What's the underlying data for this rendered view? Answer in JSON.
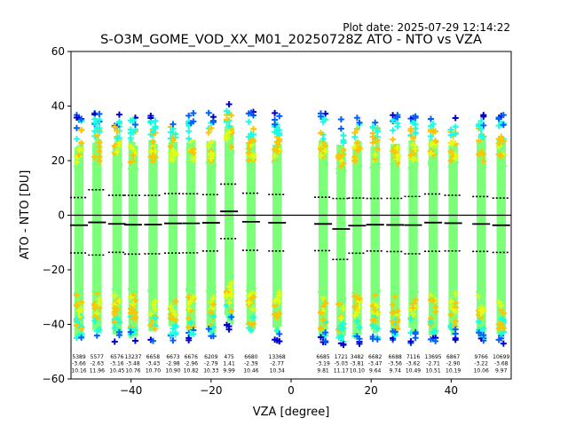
{
  "plot_date": "Plot date: 2025-07-29 12:14:22",
  "chart_data": {
    "type": "scatter",
    "title": "S-O3M_GOME_VOD_XX_M01_20250728Z ATO - NTO vs VZA",
    "xlabel": "VZA [degree]",
    "ylabel": "ATO - NTO [DU]",
    "xlim": [
      -55,
      55
    ],
    "ylim": [
      -60,
      60
    ],
    "xticks": [
      -40,
      -20,
      0,
      20,
      40
    ],
    "yticks": [
      -60,
      -40,
      -20,
      0,
      20,
      40,
      60
    ],
    "grid": false,
    "zero_line": 0,
    "colors": {
      "dense": "#7cff79",
      "mid_low": "#ffc400",
      "mid_high": "#16ffe1",
      "yellow": "#e4ff13",
      "high": "#0060ff",
      "max": "#0000cd"
    },
    "bins": [
      {
        "vza": -53.0,
        "count": "5389",
        "mean": "-3.66",
        "std": "10.16"
      },
      {
        "vza": -48.5,
        "count": "5577",
        "mean": "-2.63",
        "std": "11.96"
      },
      {
        "vza": -43.5,
        "count": "6576",
        "mean": "-3.16",
        "std": "10.45"
      },
      {
        "vza": -39.5,
        "count": "13237",
        "mean": "-3.48",
        "std": "10.76"
      },
      {
        "vza": -34.5,
        "count": "6658",
        "mean": "-3.43",
        "std": "10.70"
      },
      {
        "vza": -29.5,
        "count": "6673",
        "mean": "-2.98",
        "std": "10.90"
      },
      {
        "vza": -25.0,
        "count": "6676",
        "mean": "-2.96",
        "std": "10.82"
      },
      {
        "vza": -20.0,
        "count": "6209",
        "mean": "-2.79",
        "std": "10.33"
      },
      {
        "vza": -15.5,
        "count": "475",
        "mean": "1.41",
        "std": "9.99"
      },
      {
        "vza": -10.0,
        "count": "6680",
        "mean": "-2.39",
        "std": "10.46"
      },
      {
        "vza": -3.5,
        "count": "13368",
        "mean": "-2.77",
        "std": "10.34"
      },
      {
        "vza": 8.0,
        "count": "6685",
        "mean": "-3.19",
        "std": "9.81"
      },
      {
        "vza": 12.5,
        "count": "1721",
        "mean": "-5.03",
        "std": "11.17"
      },
      {
        "vza": 16.5,
        "count": "3482",
        "mean": "-3.81",
        "std": "10.10"
      },
      {
        "vza": 21.0,
        "count": "6682",
        "mean": "-3.47",
        "std": "9.64"
      },
      {
        "vza": 26.0,
        "count": "6688",
        "mean": "-3.56",
        "std": "9.74"
      },
      {
        "vza": 30.5,
        "count": "7116",
        "mean": "-3.62",
        "std": "10.49"
      },
      {
        "vza": 35.5,
        "count": "13695",
        "mean": "-2.71",
        "std": "10.51"
      },
      {
        "vza": 40.5,
        "count": "6867",
        "mean": "-2.90",
        "std": "10.19"
      },
      {
        "vza": 47.5,
        "count": "9766",
        "mean": "-3.22",
        "std": "10.06"
      },
      {
        "vza": 52.5,
        "count": "10699",
        "mean": "-3.68",
        "std": "9.97"
      }
    ]
  }
}
